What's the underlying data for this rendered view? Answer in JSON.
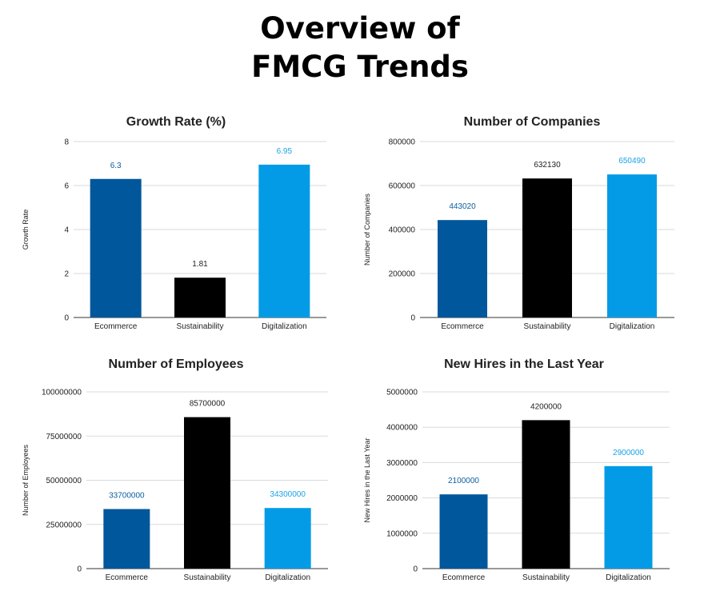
{
  "page": {
    "title_lines": [
      "Overview of",
      "FMCG Trends"
    ]
  },
  "colors": {
    "series": [
      "#01579b",
      "#000000",
      "#039be5"
    ],
    "label_text": [
      "#0b5fa0",
      "#222222",
      "#1aa3e6"
    ]
  },
  "chart_data": [
    {
      "type": "bar",
      "title": "Growth Rate (%)",
      "ylabel": "Growth Rate",
      "xlabel": "",
      "categories": [
        "Ecommerce",
        "Sustainability",
        "Digitalization"
      ],
      "values": [
        6.3,
        1.81,
        6.95
      ],
      "data_labels": [
        "6.3",
        "1.81",
        "6.95"
      ],
      "ylim": [
        0,
        8
      ],
      "yticks": [
        0,
        2,
        4,
        6,
        8
      ],
      "grid": true,
      "legend": "none"
    },
    {
      "type": "bar",
      "title": "Number of Companies",
      "ylabel": "Number of Companies",
      "xlabel": "",
      "categories": [
        "Ecommerce",
        "Sustainability",
        "Digitalization"
      ],
      "values": [
        443020,
        632130,
        650490
      ],
      "data_labels": [
        "443020",
        "632130",
        "650490"
      ],
      "ylim": [
        0,
        800000
      ],
      "yticks": [
        0,
        200000,
        400000,
        600000,
        800000
      ],
      "grid": true,
      "legend": "none"
    },
    {
      "type": "bar",
      "title": "Number of Employees",
      "ylabel": "Number of Employees",
      "xlabel": "",
      "categories": [
        "Ecommerce",
        "Sustainability",
        "Digitalization"
      ],
      "values": [
        33700000,
        85700000,
        34300000
      ],
      "data_labels": [
        "33700000",
        "85700000",
        "34300000"
      ],
      "ylim": [
        0,
        100000000
      ],
      "yticks": [
        0,
        25000000,
        50000000,
        75000000,
        100000000
      ],
      "grid": true,
      "legend": "none"
    },
    {
      "type": "bar",
      "title": "New Hires in the Last Year",
      "ylabel": "New Hires in the Last Year",
      "xlabel": "",
      "categories": [
        "Ecommerce",
        "Sustainability",
        "Digitalization"
      ],
      "values": [
        2100000,
        4200000,
        2900000
      ],
      "data_labels": [
        "2100000",
        "4200000",
        "2900000"
      ],
      "ylim": [
        0,
        5000000
      ],
      "yticks": [
        0,
        1000000,
        2000000,
        3000000,
        4000000,
        5000000
      ],
      "grid": true,
      "legend": "none"
    }
  ]
}
